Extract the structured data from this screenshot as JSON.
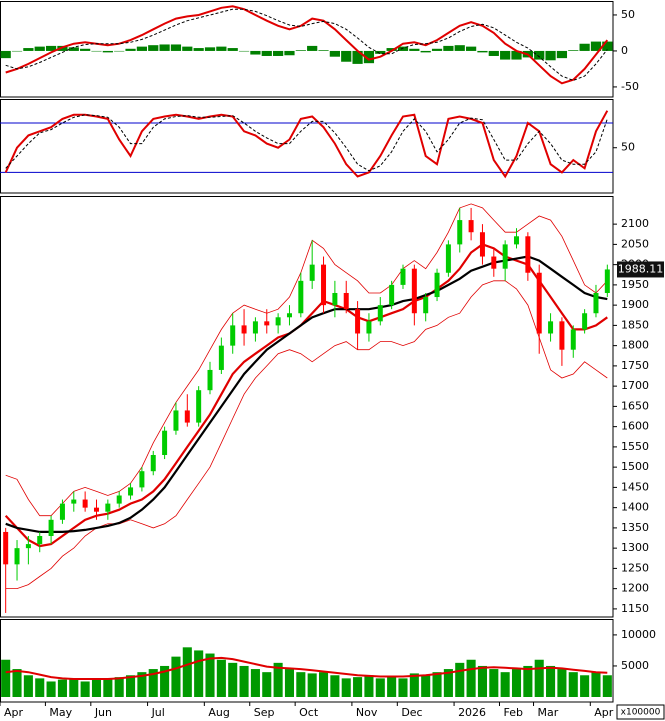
{
  "chart_data": [
    {
      "type": "macd",
      "ylim": [
        -64,
        68
      ],
      "yticks": [
        50,
        0,
        -50
      ],
      "histogram": [
        -10,
        0,
        4,
        6,
        7,
        7,
        5,
        3,
        0,
        -2,
        0,
        3,
        6,
        8,
        9,
        9,
        6,
        4,
        5,
        6,
        4,
        0,
        -5,
        -7,
        -7,
        -6,
        1,
        7,
        1,
        -8,
        -15,
        -18,
        -17,
        -4,
        4,
        6,
        3,
        -2,
        3,
        7,
        8,
        6,
        -2,
        -7,
        -12,
        -12,
        -9,
        -12,
        -13,
        -10,
        1,
        10,
        13,
        13
      ],
      "histogram_color": "#008000",
      "series": [
        {
          "color": "#e00000",
          "line_width": 2,
          "dashed": false,
          "values": [
            -30,
            -25,
            -18,
            -10,
            -2,
            5,
            10,
            12,
            10,
            8,
            10,
            15,
            22,
            30,
            38,
            45,
            48,
            50,
            55,
            60,
            62,
            58,
            50,
            42,
            35,
            30,
            35,
            45,
            42,
            30,
            15,
            0,
            -12,
            -8,
            0,
            10,
            12,
            8,
            15,
            25,
            35,
            40,
            35,
            25,
            10,
            0,
            -5,
            -20,
            -35,
            -45,
            -40,
            -25,
            -5,
            15
          ]
        },
        {
          "color": "#000000",
          "line_width": 1,
          "dashed": true,
          "values": [
            -20,
            -25,
            -22,
            -16,
            -9,
            -2,
            5,
            9,
            10,
            10,
            10,
            12,
            16,
            22,
            29,
            36,
            42,
            46,
            50,
            54,
            58,
            58,
            55,
            49,
            42,
            36,
            34,
            38,
            41,
            38,
            30,
            18,
            5,
            -4,
            -4,
            4,
            9,
            10,
            12,
            18,
            27,
            34,
            37,
            32,
            22,
            12,
            4,
            -8,
            -22,
            -35,
            -41,
            -35,
            -18,
            2
          ]
        }
      ]
    },
    {
      "type": "stochastic",
      "ylim": [
        -5,
        108
      ],
      "yticks": [
        50
      ],
      "ref_lines": [
        80,
        20
      ],
      "ref_color": "#0000cc",
      "series": [
        {
          "color": "#e00000",
          "line_width": 2,
          "dashed": false,
          "values": [
            20,
            50,
            65,
            70,
            75,
            85,
            90,
            90,
            88,
            85,
            60,
            40,
            70,
            85,
            88,
            90,
            88,
            85,
            88,
            90,
            88,
            70,
            65,
            55,
            50,
            60,
            85,
            88,
            75,
            55,
            30,
            15,
            20,
            40,
            65,
            88,
            90,
            40,
            30,
            85,
            88,
            85,
            80,
            35,
            15,
            40,
            80,
            70,
            30,
            20,
            35,
            25,
            70,
            95
          ]
        },
        {
          "color": "#000000",
          "line_width": 1,
          "dashed": true,
          "values": [
            25,
            40,
            55,
            68,
            72,
            80,
            87,
            90,
            89,
            87,
            75,
            55,
            55,
            75,
            85,
            88,
            89,
            87,
            87,
            88,
            89,
            80,
            70,
            62,
            55,
            55,
            70,
            82,
            82,
            68,
            50,
            30,
            22,
            28,
            45,
            70,
            85,
            70,
            45,
            60,
            80,
            86,
            84,
            60,
            35,
            35,
            55,
            70,
            55,
            35,
            30,
            30,
            45,
            85
          ]
        }
      ]
    },
    {
      "type": "candlestick",
      "ylim": [
        1130,
        2167
      ],
      "yticks": [
        1150,
        1200,
        1250,
        1300,
        1350,
        1400,
        1450,
        1500,
        1550,
        1600,
        1650,
        1700,
        1750,
        1800,
        1850,
        1900,
        1950,
        2000,
        2050,
        2100
      ],
      "up_color": "#00cc00",
      "down_color": "#ff0000",
      "open": [
        1340,
        1260,
        1300,
        1310,
        1330,
        1370,
        1410,
        1420,
        1400,
        1390,
        1410,
        1430,
        1450,
        1490,
        1530,
        1590,
        1640,
        1610,
        1690,
        1740,
        1800,
        1850,
        1830,
        1860,
        1850,
        1870,
        1880,
        1960,
        2000,
        1900,
        1930,
        1890,
        1830,
        1860,
        1900,
        1950,
        1990,
        1880,
        1920,
        1980,
        2050,
        2110,
        2080,
        2020,
        1990,
        2050,
        2070,
        1980,
        1830,
        1860,
        1790,
        1840,
        1880,
        1930
      ],
      "high": [
        1350,
        1320,
        1330,
        1340,
        1380,
        1420,
        1440,
        1440,
        1420,
        1420,
        1440,
        1460,
        1500,
        1540,
        1600,
        1660,
        1680,
        1700,
        1760,
        1820,
        1880,
        1890,
        1870,
        1890,
        1880,
        1900,
        1980,
        2060,
        2020,
        1960,
        1960,
        1910,
        1880,
        1920,
        1960,
        2000,
        2000,
        1930,
        1990,
        2060,
        2140,
        2140,
        2100,
        2040,
        2060,
        2090,
        2080,
        2000,
        1880,
        1870,
        1850,
        1890,
        1950,
        2000
      ],
      "low": [
        1140,
        1220,
        1260,
        1290,
        1310,
        1360,
        1390,
        1390,
        1370,
        1370,
        1400,
        1420,
        1440,
        1480,
        1520,
        1580,
        1600,
        1600,
        1680,
        1730,
        1780,
        1800,
        1810,
        1830,
        1830,
        1850,
        1870,
        1940,
        1880,
        1870,
        1880,
        1790,
        1810,
        1850,
        1890,
        1940,
        1850,
        1860,
        1910,
        1970,
        2030,
        2060,
        2000,
        1970,
        1960,
        2040,
        1960,
        1780,
        1810,
        1750,
        1770,
        1830,
        1870,
        1920
      ],
      "close": [
        1260,
        1300,
        1310,
        1330,
        1370,
        1410,
        1420,
        1400,
        1390,
        1410,
        1430,
        1450,
        1490,
        1530,
        1590,
        1640,
        1610,
        1690,
        1740,
        1800,
        1850,
        1830,
        1860,
        1850,
        1870,
        1880,
        1960,
        2000,
        1900,
        1930,
        1890,
        1830,
        1860,
        1900,
        1950,
        1990,
        1880,
        1920,
        1980,
        2050,
        2110,
        2080,
        2020,
        1990,
        2050,
        2070,
        1980,
        1830,
        1860,
        1790,
        1840,
        1880,
        1930,
        1988.11
      ],
      "series": [
        {
          "color": "#e00000",
          "line_width": 0.8,
          "dashed": false,
          "values": [
            1480,
            1470,
            1420,
            1380,
            1380,
            1410,
            1440,
            1450,
            1440,
            1430,
            1440,
            1460,
            1500,
            1560,
            1610,
            1660,
            1700,
            1740,
            1790,
            1840,
            1880,
            1900,
            1890,
            1880,
            1890,
            1920,
            1980,
            2060,
            2040,
            2000,
            1980,
            1960,
            1930,
            1930,
            1950,
            1990,
            2010,
            1990,
            2030,
            2080,
            2140,
            2150,
            2140,
            2110,
            2080,
            2080,
            2100,
            2120,
            2110,
            2070,
            2010,
            1950,
            1930,
            1960
          ]
        },
        {
          "color": "#e00000",
          "line_width": 0.8,
          "dashed": false,
          "values": [
            1200,
            1200,
            1210,
            1230,
            1250,
            1280,
            1300,
            1330,
            1350,
            1360,
            1360,
            1370,
            1360,
            1350,
            1360,
            1380,
            1420,
            1460,
            1500,
            1560,
            1620,
            1680,
            1720,
            1750,
            1780,
            1790,
            1780,
            1760,
            1780,
            1800,
            1810,
            1790,
            1790,
            1810,
            1810,
            1800,
            1810,
            1840,
            1850,
            1870,
            1880,
            1920,
            1950,
            1960,
            1960,
            1940,
            1900,
            1820,
            1740,
            1720,
            1730,
            1760,
            1740,
            1720
          ]
        },
        {
          "color": "#e00000",
          "line_width": 2.2,
          "dashed": false,
          "values": [
            1380,
            1350,
            1320,
            1305,
            1310,
            1330,
            1350,
            1370,
            1380,
            1385,
            1395,
            1410,
            1420,
            1440,
            1470,
            1510,
            1550,
            1590,
            1630,
            1680,
            1730,
            1760,
            1780,
            1800,
            1820,
            1830,
            1850,
            1880,
            1910,
            1900,
            1890,
            1870,
            1860,
            1870,
            1880,
            1890,
            1910,
            1920,
            1940,
            1960,
            1990,
            2030,
            2050,
            2040,
            2020,
            2010,
            2000,
            1960,
            1920,
            1880,
            1840,
            1840,
            1850,
            1870
          ]
        },
        {
          "color": "#000000",
          "line_width": 2.2,
          "dashed": false,
          "values": [
            1360,
            1350,
            1345,
            1340,
            1340,
            1340,
            1342,
            1345,
            1350,
            1355,
            1362,
            1375,
            1395,
            1420,
            1450,
            1490,
            1530,
            1570,
            1610,
            1650,
            1690,
            1730,
            1760,
            1790,
            1810,
            1830,
            1850,
            1870,
            1880,
            1890,
            1890,
            1890,
            1890,
            1895,
            1900,
            1910,
            1915,
            1925,
            1935,
            1950,
            1965,
            1985,
            1995,
            2005,
            2010,
            2015,
            2020,
            2010,
            1990,
            1970,
            1950,
            1930,
            1920,
            1915
          ]
        }
      ]
    },
    {
      "type": "bar",
      "ylim": [
        0,
        12400
      ],
      "yticks": [
        5000,
        10000
      ],
      "color": "#009900",
      "unit_label": "x100000",
      "categories": [
        "Apr",
        null,
        null,
        null,
        "May",
        null,
        null,
        null,
        "Jun",
        null,
        null,
        null,
        null,
        "Jul",
        null,
        null,
        null,
        null,
        "Aug",
        null,
        null,
        null,
        "Sep",
        null,
        null,
        null,
        "Oct",
        null,
        null,
        null,
        null,
        "Nov",
        null,
        null,
        null,
        "Dec",
        null,
        null,
        null,
        null,
        "2026",
        null,
        null,
        null,
        "Feb",
        null,
        null,
        "Mar",
        null,
        null,
        null,
        null,
        "Apr",
        null
      ],
      "values": [
        6000,
        4500,
        3500,
        3000,
        2500,
        2800,
        3000,
        2500,
        2800,
        3000,
        3200,
        3500,
        4000,
        4500,
        5000,
        6500,
        8000,
        7500,
        7000,
        6000,
        5500,
        5000,
        4500,
        4000,
        5500,
        4500,
        4000,
        3800,
        4000,
        3500,
        3000,
        3200,
        3500,
        3000,
        3200,
        3000,
        3800,
        3500,
        4000,
        4500,
        5500,
        6000,
        5000,
        4500,
        4000,
        4500,
        5000,
        6000,
        5000,
        4500,
        4000,
        3500,
        4000,
        3500
      ],
      "series": [
        {
          "color": "#e00000",
          "line_width": 2,
          "dashed": false,
          "values": [
            4000,
            4200,
            4000,
            3600,
            3200,
            3000,
            2900,
            2900,
            2900,
            2900,
            3000,
            3200,
            3400,
            3700,
            4100,
            4600,
            5200,
            5800,
            6200,
            6300,
            6100,
            5700,
            5300,
            4900,
            4700,
            4600,
            4500,
            4300,
            4100,
            3900,
            3700,
            3500,
            3400,
            3300,
            3300,
            3300,
            3400,
            3500,
            3700,
            3900,
            4200,
            4500,
            4700,
            4800,
            4700,
            4600,
            4500,
            4600,
            4700,
            4600,
            4400,
            4200,
            4000,
            3900
          ]
        }
      ]
    }
  ]
}
